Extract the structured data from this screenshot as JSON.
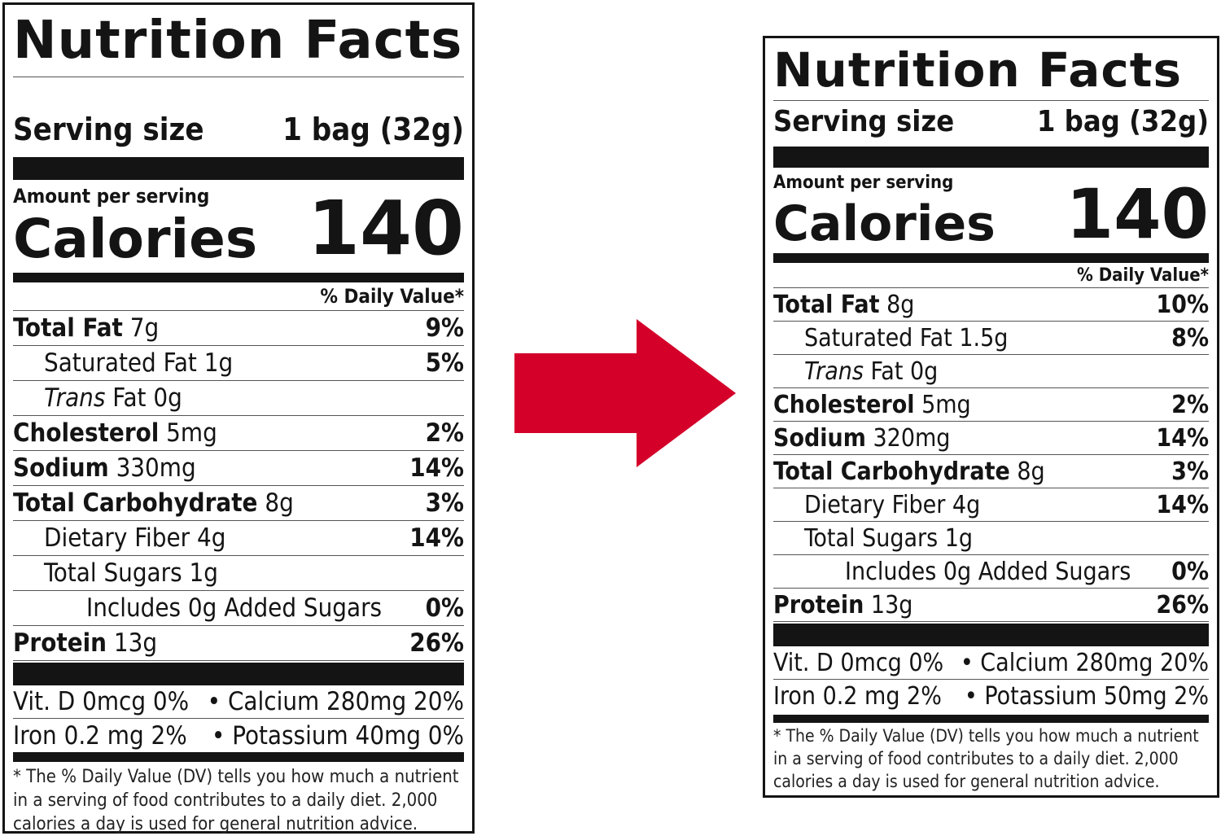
{
  "colors": {
    "arrow": "#d4002a",
    "ink": "#141414"
  },
  "arrow_icon": "right-arrow-icon",
  "labels": [
    {
      "title": "Nutrition Facts",
      "serving_label": "Serving size",
      "serving_value": "1 bag (32g)",
      "amount_per_serving": "Amount per serving",
      "calories_label": "Calories",
      "calories_value": "140",
      "dv_header": "% Daily Value*",
      "rows": [
        {
          "name": "Total Fat",
          "amount": "7g",
          "dv": "9%",
          "indent": 0,
          "bold": true
        },
        {
          "name": "Saturated Fat",
          "amount": "1g",
          "dv": "5%",
          "indent": 1,
          "bold": false
        },
        {
          "name": "Trans",
          "amount": "Fat 0g",
          "dv": "",
          "indent": 1,
          "bold": false,
          "italic": true
        },
        {
          "name": "Cholesterol",
          "amount": "5mg",
          "dv": "2%",
          "indent": 0,
          "bold": true
        },
        {
          "name": "Sodium",
          "amount": "330mg",
          "dv": "14%",
          "indent": 0,
          "bold": true
        },
        {
          "name": "Total Carbohydrate",
          "amount": "8g",
          "dv": "3%",
          "indent": 0,
          "bold": true
        },
        {
          "name": "Dietary Fiber",
          "amount": "4g",
          "dv": "14%",
          "indent": 1,
          "bold": false
        },
        {
          "name": "Total Sugars",
          "amount": "1g",
          "dv": "",
          "indent": 1,
          "bold": false
        },
        {
          "name": "Includes 0g Added Sugars",
          "amount": "",
          "dv": "0%",
          "indent": 2,
          "bold": false
        },
        {
          "name": "Protein",
          "amount": "13g",
          "dv": "26%",
          "indent": 0,
          "bold": true
        }
      ],
      "vitamins": [
        [
          "Vit. D 0mcg 0%",
          "•  Calcium 280mg 20%"
        ],
        [
          "Iron 0.2 mg 2%",
          "•  Potassium 40mg 0%"
        ]
      ],
      "footnote": "* The % Daily Value (DV) tells you how much a nutrient in a serving of food contributes to a daily diet. 2,000 calories a day is used for general nutrition advice."
    },
    {
      "title": "Nutrition Facts",
      "serving_label": "Serving size",
      "serving_value": "1 bag (32g)",
      "amount_per_serving": "Amount per serving",
      "calories_label": "Calories",
      "calories_value": "140",
      "dv_header": "% Daily Value*",
      "rows": [
        {
          "name": "Total Fat",
          "amount": "8g",
          "dv": "10%",
          "indent": 0,
          "bold": true
        },
        {
          "name": "Saturated Fat",
          "amount": "1.5g",
          "dv": "8%",
          "indent": 1,
          "bold": false
        },
        {
          "name": "Trans",
          "amount": "Fat 0g",
          "dv": "",
          "indent": 1,
          "bold": false,
          "italic": true
        },
        {
          "name": "Cholesterol",
          "amount": "5mg",
          "dv": "2%",
          "indent": 0,
          "bold": true
        },
        {
          "name": "Sodium",
          "amount": "320mg",
          "dv": "14%",
          "indent": 0,
          "bold": true
        },
        {
          "name": "Total Carbohydrate",
          "amount": "8g",
          "dv": "3%",
          "indent": 0,
          "bold": true
        },
        {
          "name": "Dietary Fiber",
          "amount": "4g",
          "dv": "14%",
          "indent": 1,
          "bold": false
        },
        {
          "name": "Total Sugars",
          "amount": "1g",
          "dv": "",
          "indent": 1,
          "bold": false
        },
        {
          "name": "Includes 0g Added Sugars",
          "amount": "",
          "dv": "0%",
          "indent": 2,
          "bold": false
        },
        {
          "name": "Protein",
          "amount": "13g",
          "dv": "26%",
          "indent": 0,
          "bold": true
        }
      ],
      "vitamins": [
        [
          "Vit. D 0mcg 0%",
          "•  Calcium 280mg 20%"
        ],
        [
          "Iron 0.2 mg 2%",
          "•  Potassium 50mg 2%"
        ]
      ],
      "footnote": "* The % Daily Value (DV) tells you how much a nutrient in a serving of food contributes to a daily diet. 2,000 calories a day is used for general nutrition advice."
    }
  ]
}
